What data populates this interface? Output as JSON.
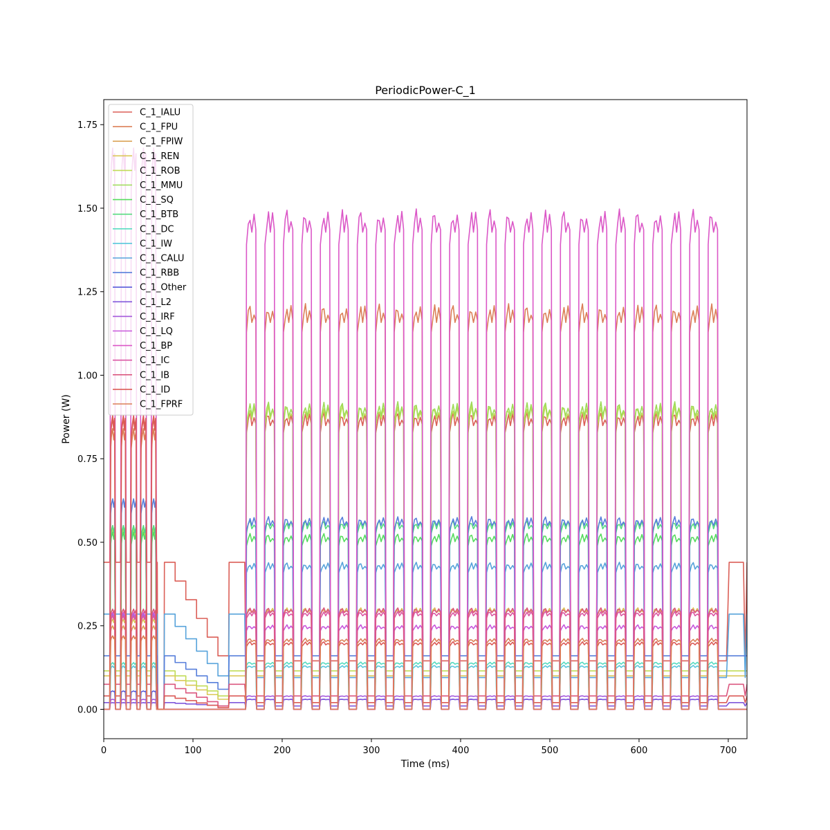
{
  "chart_data": {
    "type": "line",
    "title": "PeriodicPower-C_1",
    "xlabel": "Time (ms)",
    "ylabel": "Power (W)",
    "xlim": [
      0,
      721
    ],
    "ylim": [
      -0.088,
      1.825
    ],
    "xticks": [
      0,
      100,
      200,
      300,
      400,
      500,
      600,
      700
    ],
    "yticks": [
      0.0,
      0.25,
      0.5,
      0.75,
      1.0,
      1.25,
      1.5,
      1.75
    ],
    "xtick_labels": [
      "0",
      "100",
      "200",
      "300",
      "400",
      "500",
      "600",
      "700"
    ],
    "ytick_labels": [
      "0.00",
      "0.25",
      "0.50",
      "0.75",
      "1.00",
      "1.25",
      "1.50",
      "1.75"
    ],
    "grid": false,
    "legend_position": "top-left",
    "structure": {
      "phase1_pulses": [
        [
          7,
          13
        ],
        [
          19,
          25
        ],
        [
          30,
          37
        ],
        [
          41,
          48
        ],
        [
          53,
          59
        ]
      ],
      "phase1_end": 60,
      "decay_start": 68,
      "decay_end": 140,
      "decay_steps": 6,
      "phase3_start": 158,
      "phase3_pulse_period": 20.7,
      "phase3_pulse_width": 12.5,
      "phase3_pulses": 26,
      "end_time": 700
    },
    "series": [
      {
        "name": "C_1_IALU",
        "color": "#db5f57",
        "phase1_high": 0.87,
        "phase1_base": 0.44,
        "decay_start_val": 0.44,
        "decay_end_val": 0.16,
        "phase3_high": 0.88,
        "phase3_base": 0.145,
        "final_val": 0.44
      },
      {
        "name": "C_1_FPU",
        "color": "#db7f57",
        "phase1_high": 0.84,
        "phase1_base": 0.0,
        "decay_start_val": 0.0,
        "decay_end_val": 0.0,
        "phase3_high": 1.2,
        "phase3_base": 0.0,
        "final_val": 0.0
      },
      {
        "name": "C_1_FPIW",
        "color": "#dba357",
        "phase1_high": 0.25,
        "phase1_base": 0.0,
        "decay_start_val": 0.0,
        "decay_end_val": 0.0,
        "phase3_high": 0.3,
        "phase3_base": 0.0,
        "final_val": 0.0
      },
      {
        "name": "C_1_REN",
        "color": "#dbc757",
        "phase1_high": 0.27,
        "phase1_base": 0.1,
        "decay_start_val": 0.1,
        "decay_end_val": 0.03,
        "phase3_high": 0.3,
        "phase3_base": 0.1,
        "final_val": 0.1
      },
      {
        "name": "C_1_ROB",
        "color": "#c1db57",
        "phase1_high": 0.54,
        "phase1_base": 0.115,
        "decay_start_val": 0.115,
        "decay_end_val": 0.04,
        "phase3_high": 0.9,
        "phase3_base": 0.115,
        "final_val": 0.115
      },
      {
        "name": "C_1_MMU",
        "color": "#9edb57",
        "phase1_high": 0.55,
        "phase1_base": 0.0,
        "decay_start_val": 0.0,
        "decay_end_val": 0.0,
        "phase3_high": 0.91,
        "phase3_base": 0.0,
        "final_val": 0.0
      },
      {
        "name": "C_1_SQ",
        "color": "#57db5f",
        "phase1_high": 0.53,
        "phase1_base": 0.0,
        "decay_start_val": 0.0,
        "decay_end_val": 0.0,
        "phase3_high": 0.52,
        "phase3_base": 0.0,
        "final_val": 0.0
      },
      {
        "name": "C_1_BTB",
        "color": "#57db80",
        "phase1_high": 0.55,
        "phase1_base": 0.0,
        "decay_start_val": 0.0,
        "decay_end_val": 0.0,
        "phase3_high": 0.56,
        "phase3_base": 0.0,
        "final_val": 0.0
      },
      {
        "name": "C_1_DC",
        "color": "#57dbc1",
        "phase1_high": 0.14,
        "phase1_base": 0.0,
        "decay_start_val": 0.0,
        "decay_end_val": 0.0,
        "phase3_high": 0.14,
        "phase3_base": 0.0,
        "final_val": 0.0
      },
      {
        "name": "C_1_IW",
        "color": "#57c7db",
        "phase1_high": 0.13,
        "phase1_base": 0.0,
        "decay_start_val": 0.0,
        "decay_end_val": 0.0,
        "phase3_high": 0.13,
        "phase3_base": 0.0,
        "final_val": 0.0
      },
      {
        "name": "C_1_CALU",
        "color": "#57a3db",
        "phase1_high": 0.285,
        "phase1_base": 0.285,
        "decay_start_val": 0.285,
        "decay_end_val": 0.1,
        "phase3_high": 0.435,
        "phase3_base": 0.095,
        "final_val": 0.285
      },
      {
        "name": "C_1_RBB",
        "color": "#577fdb",
        "phase1_high": 0.63,
        "phase1_base": 0.16,
        "decay_start_val": 0.16,
        "decay_end_val": 0.06,
        "phase3_high": 0.57,
        "phase3_base": 0.16,
        "final_val": 0.16
      },
      {
        "name": "C_1_Other",
        "color": "#575bdb",
        "phase1_high": 0.055,
        "phase1_base": 0.0,
        "decay_start_val": 0.0,
        "decay_end_val": 0.0,
        "phase3_high": 0.03,
        "phase3_base": 0.0,
        "final_val": 0.0
      },
      {
        "name": "C_1_L2",
        "color": "#7f57db",
        "phase1_high": 0.02,
        "phase1_base": 0.02,
        "decay_start_val": 0.02,
        "decay_end_val": 0.01,
        "phase3_high": 0.03,
        "phase3_base": 0.01,
        "final_val": 0.02
      },
      {
        "name": "C_1_IRF",
        "color": "#a357db",
        "phase1_high": 0.03,
        "phase1_base": 0.0,
        "decay_start_val": 0.0,
        "decay_end_val": 0.0,
        "phase3_high": 0.04,
        "phase3_base": 0.0,
        "final_val": 0.0
      },
      {
        "name": "C_1_LQ",
        "color": "#c757db",
        "phase1_high": 0.29,
        "phase1_base": 0.0,
        "decay_start_val": 0.0,
        "decay_end_val": 0.0,
        "phase3_high": 0.25,
        "phase3_base": 0.0,
        "final_val": 0.0
      },
      {
        "name": "C_1_BP",
        "color": "#db57c7",
        "phase1_high": 1.68,
        "phase1_base": 0.0,
        "decay_start_val": 0.0,
        "decay_end_val": 0.0,
        "phase3_high": 1.48,
        "phase3_base": 0.0,
        "final_val": 0.0
      },
      {
        "name": "C_1_IC",
        "color": "#db57a3",
        "phase1_high": 0.28,
        "phase1_base": 0.0,
        "decay_start_val": 0.0,
        "decay_end_val": 0.0,
        "phase3_high": 0.29,
        "phase3_base": 0.0,
        "final_val": 0.0
      },
      {
        "name": "C_1_IB",
        "color": "#db577f",
        "phase1_high": 0.3,
        "phase1_base": 0.075,
        "decay_start_val": 0.075,
        "decay_end_val": 0.01,
        "phase3_high": 0.3,
        "phase3_base": 0.04,
        "final_val": 0.075
      },
      {
        "name": "C_1_ID",
        "color": "#db5b57",
        "phase1_high": 0.88,
        "phase1_base": 0.04,
        "decay_start_val": 0.04,
        "decay_end_val": 0.005,
        "phase3_high": 0.2,
        "phase3_base": 0.02,
        "final_val": 0.04
      },
      {
        "name": "C_1_FPRF",
        "color": "#db7f57",
        "phase1_high": 0.22,
        "phase1_base": 0.0,
        "decay_start_val": 0.0,
        "decay_end_val": 0.0,
        "phase3_high": 0.21,
        "phase3_base": 0.0,
        "final_val": 0.0
      },
      {
        "name": "",
        "color": "#dbc757",
        "phase1_high": 0.0,
        "phase1_base": 0.0,
        "decay_start_val": 0.0,
        "decay_end_val": 0.0,
        "phase3_high": 0.0,
        "phase3_base": 0.0,
        "final_val": 0.0
      }
    ]
  }
}
